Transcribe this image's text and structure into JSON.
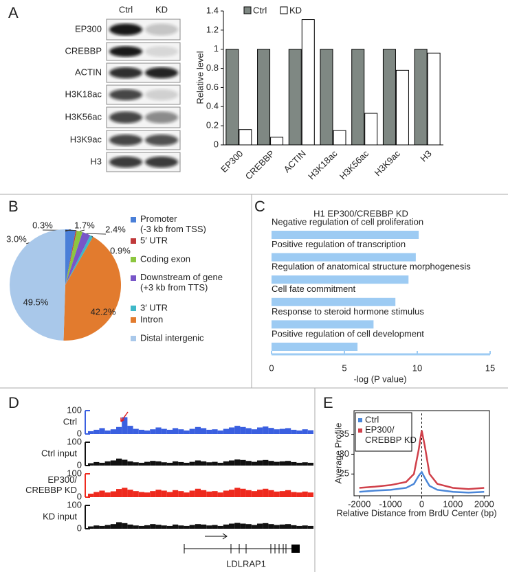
{
  "panel_labels": [
    "A",
    "B",
    "C",
    "D",
    "E"
  ],
  "blot": {
    "lanes": [
      "Ctrl",
      "KD"
    ],
    "rows": [
      "EP300",
      "CREBBP",
      "ACTIN",
      "H3K18ac",
      "H3K56ac",
      "H3K9ac",
      "H3"
    ]
  },
  "chart_data": [
    {
      "type": "bar",
      "ylabel": "Relative level",
      "categories": [
        "EP300",
        "CREBBP",
        "ACTIN",
        "H3K18ac",
        "H3K56ac",
        "H3K9ac",
        "H3"
      ],
      "series": [
        {
          "name": "Ctrl",
          "color": "#7f8883",
          "values": [
            1,
            1,
            1,
            1,
            1,
            1,
            1
          ]
        },
        {
          "name": "KD",
          "color": "#ffffff",
          "values": [
            0.16,
            0.08,
            1.31,
            0.15,
            0.33,
            0.78,
            0.96
          ]
        }
      ],
      "ylim": [
        0,
        1.4
      ],
      "yticks": [
        0,
        0.2,
        0.4,
        0.6,
        0.8,
        1,
        1.2,
        1.4
      ],
      "legend": "top"
    },
    {
      "type": "pie",
      "categories": [
        "Promoter\n(-3 kb from TSS)",
        "5′ UTR",
        "Coding exon",
        "Downstream of gene\n(+3 kb from TTS)",
        "3′ UTR",
        "Intron",
        "Distal intergenic"
      ],
      "colors": [
        "#4a7fd8",
        "#c0393b",
        "#8cc63f",
        "#7856c8",
        "#3fb8c8",
        "#e27b2e",
        "#a9c8ea"
      ],
      "values": [
        3.0,
        0.3,
        1.7,
        2.4,
        0.9,
        42.2,
        49.5
      ],
      "value_labels": [
        "3.0%",
        "0.3%",
        "1.7%",
        "2.4%",
        "0.9%",
        "42.2%",
        "49.5%"
      ],
      "legend": "right"
    },
    {
      "type": "hbar",
      "title": "H1 EP300/CREBBP KD",
      "xlabel": "-log (P value)",
      "categories": [
        "Negative regulation of cell proliferation",
        "Positive regulation of transcription",
        "Regulation of anatomical structure morphogenesis",
        "Cell fate commitment",
        "Response to steroid hormone stimulus",
        "Positive regulation of cell development"
      ],
      "values": [
        10.1,
        9.9,
        9.4,
        8.5,
        7.0,
        5.9
      ],
      "color": "#9dcbf3",
      "xlim": [
        0,
        15
      ],
      "xticks": [
        0,
        5,
        10,
        15
      ]
    },
    {
      "type": "track",
      "gene": "LDLRAP1",
      "series": [
        {
          "name": "Ctrl",
          "color": "#3a5fe0",
          "ylim": [
            0,
            100
          ],
          "yticks": [
            0,
            100
          ],
          "values": [
            12,
            18,
            25,
            15,
            20,
            30,
            72,
            35,
            22,
            18,
            15,
            20,
            28,
            22,
            18,
            25,
            20,
            15,
            22,
            30,
            25,
            18,
            20,
            15,
            22,
            28,
            35,
            30,
            25,
            20,
            28,
            32,
            26,
            20,
            22,
            25,
            18,
            15,
            20,
            16
          ]
        },
        {
          "name": "Ctrl input",
          "color": "#111111",
          "ylim": [
            0,
            100
          ],
          "yticks": [
            0,
            100
          ],
          "values": [
            10,
            15,
            12,
            18,
            22,
            30,
            25,
            18,
            14,
            12,
            16,
            20,
            18,
            14,
            12,
            18,
            15,
            12,
            16,
            22,
            18,
            14,
            16,
            12,
            18,
            22,
            26,
            24,
            20,
            16,
            22,
            24,
            20,
            16,
            18,
            20,
            15,
            12,
            14,
            12
          ]
        },
        {
          "name": "EP300/\nCREBBP KD",
          "color": "#ee2a1e",
          "ylim": [
            0,
            100
          ],
          "yticks": [
            0,
            100
          ],
          "values": [
            15,
            22,
            28,
            20,
            25,
            35,
            40,
            32,
            26,
            22,
            20,
            26,
            32,
            28,
            22,
            30,
            26,
            20,
            28,
            36,
            30,
            24,
            26,
            20,
            28,
            32,
            40,
            36,
            30,
            26,
            32,
            36,
            30,
            24,
            26,
            30,
            22,
            20,
            24,
            20
          ]
        },
        {
          "name": "KD input",
          "color": "#111111",
          "ylim": [
            0,
            100
          ],
          "yticks": [
            0,
            100
          ],
          "values": [
            10,
            14,
            12,
            16,
            20,
            28,
            24,
            18,
            14,
            12,
            15,
            20,
            17,
            14,
            12,
            18,
            14,
            12,
            16,
            20,
            18,
            14,
            16,
            12,
            18,
            22,
            25,
            22,
            20,
            16,
            22,
            24,
            20,
            16,
            18,
            20,
            15,
            12,
            14,
            12
          ]
        }
      ]
    },
    {
      "type": "line",
      "xlabel": "Relative Distance from BrdU Center (bp)",
      "ylabel": "Average Profile",
      "x": [
        -2000,
        -1500,
        -1000,
        -500,
        -250,
        -100,
        0,
        100,
        250,
        500,
        1000,
        1500,
        2000
      ],
      "series": [
        {
          "name": "Ctrl",
          "color": "#4a86d8",
          "values": [
            20.5,
            20.8,
            21,
            21.5,
            22.5,
            24.5,
            25.5,
            24,
            22,
            21,
            20.5,
            20.3,
            20.5
          ]
        },
        {
          "name": "EP300/\nCREBBP KD",
          "color": "#d0404a",
          "values": [
            21.5,
            21.8,
            22.2,
            23,
            25,
            31,
            36,
            32,
            25,
            22.5,
            21.5,
            21.2,
            21.5
          ]
        }
      ],
      "xlim": [
        -2170,
        2170
      ],
      "ylim": [
        19.5,
        41
      ],
      "xticks": [
        -2000,
        -1000,
        0,
        1000,
        2000
      ],
      "yticks": [
        25,
        30,
        35
      ],
      "legend": "top-left"
    }
  ]
}
